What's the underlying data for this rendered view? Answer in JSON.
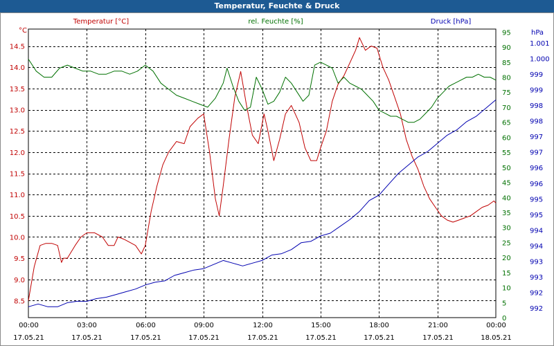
{
  "window": {
    "title": "Temperatur, Feuchte & Druck"
  },
  "colors": {
    "temperature": "#c00000",
    "humidity": "#007000",
    "pressure": "#0000b0",
    "grid": "#000000",
    "title_bar": "#1d5a93"
  },
  "chart_data": {
    "type": "line",
    "title": "Temperatur, Feuchte & Druck",
    "grid": true,
    "x": {
      "ticks": [
        {
          "time": "00:00",
          "date": "17.05.21"
        },
        {
          "time": "03:00",
          "date": "17.05.21"
        },
        {
          "time": "06:00",
          "date": "17.05.21"
        },
        {
          "time": "09:00",
          "date": "17.05.21"
        },
        {
          "time": "12:00",
          "date": "17.05.21"
        },
        {
          "time": "15:00",
          "date": "17.05.21"
        },
        {
          "time": "18:00",
          "date": "17.05.21"
        },
        {
          "time": "21:00",
          "date": "17.05.21"
        },
        {
          "time": "00:00",
          "date": "18.05.21"
        }
      ],
      "range": [
        0,
        24
      ],
      "unit": "hours"
    },
    "axes": {
      "temperature": {
        "label": "Temperatur [°C]",
        "unit_label": "°C",
        "range": [
          8.1,
          14.9
        ],
        "ticks": [
          "14.5",
          "14.0",
          "13.5",
          "13.0",
          "12.5",
          "12.0",
          "11.5",
          "11.0",
          "10.5",
          "10.0",
          "9.5",
          "9.0",
          "8.5"
        ]
      },
      "humidity": {
        "label": "rel. Feuchte [%]",
        "unit_label": "%",
        "range": [
          0,
          96
        ],
        "ticks": [
          "95",
          "90",
          "85",
          "80",
          "75",
          "70",
          "65",
          "60",
          "55",
          "50",
          "45",
          "40",
          "35",
          "30",
          "25",
          "20",
          "15",
          "10",
          "5",
          "0"
        ]
      },
      "pressure": {
        "label": "Druck [hPa]",
        "unit_label": "hPa",
        "range": [
          991.0,
          1001.6
        ],
        "ticks": [
          "1.001",
          "1.000",
          "999",
          "999",
          "998",
          "998",
          "997",
          "997",
          "996",
          "996",
          "995",
          "995",
          "994",
          "994",
          "993",
          "993",
          "992",
          "992"
        ]
      }
    },
    "series": [
      {
        "name": "Temperatur [°C]",
        "axis": "temperature",
        "x": [
          0,
          0.3,
          0.6,
          0.9,
          1.2,
          1.5,
          1.7,
          1.8,
          2.0,
          2.4,
          2.7,
          3.0,
          3.4,
          3.8,
          4.1,
          4.4,
          4.6,
          4.9,
          5.1,
          5.5,
          5.8,
          6.0,
          6.3,
          6.6,
          6.9,
          7.2,
          7.6,
          8.0,
          8.3,
          8.7,
          9.0,
          9.3,
          9.6,
          9.8,
          10.0,
          10.3,
          10.6,
          10.9,
          11.2,
          11.5,
          11.8,
          12.1,
          12.3,
          12.6,
          12.9,
          13.2,
          13.5,
          13.7,
          13.9,
          14.2,
          14.5,
          14.8,
          15.0,
          15.3,
          15.6,
          15.9,
          16.2,
          16.5,
          16.8,
          17.0,
          17.3,
          17.6,
          17.9,
          18.2,
          18.5,
          18.8,
          19.1,
          19.4,
          19.7,
          20.0,
          20.3,
          20.6,
          20.9,
          21.2,
          21.5,
          21.8,
          22.1,
          22.4,
          22.7,
          23.0,
          23.3,
          23.6,
          23.9,
          24.0
        ],
        "y": [
          8.5,
          9.3,
          9.8,
          9.85,
          9.85,
          9.8,
          9.4,
          9.5,
          9.5,
          9.8,
          10.0,
          10.1,
          10.1,
          10.0,
          9.8,
          9.8,
          10.0,
          9.95,
          9.9,
          9.8,
          9.6,
          9.8,
          10.6,
          11.2,
          11.7,
          12.0,
          12.25,
          12.2,
          12.6,
          12.8,
          12.9,
          12.0,
          10.9,
          10.5,
          11.2,
          12.3,
          13.3,
          13.9,
          13.1,
          12.4,
          12.2,
          12.9,
          12.5,
          11.8,
          12.3,
          12.9,
          13.1,
          12.9,
          12.7,
          12.1,
          11.8,
          11.8,
          12.1,
          12.5,
          13.2,
          13.6,
          13.8,
          14.1,
          14.4,
          14.7,
          14.4,
          14.5,
          14.45,
          14.0,
          13.7,
          13.3,
          12.9,
          12.3,
          11.9,
          11.6,
          11.2,
          10.9,
          10.7,
          10.5,
          10.4,
          10.35,
          10.4,
          10.45,
          10.5,
          10.6,
          10.7,
          10.75,
          10.85,
          10.8
        ]
      },
      {
        "name": "rel. Feuchte [%]",
        "axis": "humidity",
        "x": [
          0,
          0.4,
          0.8,
          1.2,
          1.6,
          2.0,
          2.4,
          2.8,
          3.2,
          3.6,
          4.0,
          4.4,
          4.8,
          5.2,
          5.6,
          6.0,
          6.4,
          6.8,
          7.2,
          7.6,
          8.0,
          8.4,
          8.8,
          9.2,
          9.6,
          10.0,
          10.2,
          10.5,
          10.8,
          11.1,
          11.4,
          11.7,
          12.0,
          12.3,
          12.6,
          12.9,
          13.2,
          13.5,
          13.8,
          14.1,
          14.4,
          14.7,
          15.0,
          15.3,
          15.6,
          15.9,
          16.2,
          16.5,
          16.8,
          17.1,
          17.4,
          17.7,
          18.0,
          18.3,
          18.6,
          18.9,
          19.2,
          19.5,
          19.8,
          20.1,
          20.4,
          20.7,
          21.0,
          21.3,
          21.6,
          21.9,
          22.2,
          22.5,
          22.8,
          23.1,
          23.4,
          23.7,
          24.0
        ],
        "y": [
          86,
          82,
          80,
          80,
          83,
          84,
          83,
          82,
          82,
          81,
          81,
          82,
          82,
          81,
          82,
          84,
          82,
          78,
          76,
          74,
          73,
          72,
          71,
          70,
          73,
          78,
          83,
          77,
          72,
          69,
          70,
          80,
          76,
          71,
          72,
          75,
          80,
          78,
          75,
          72,
          74,
          84,
          85,
          84,
          83,
          78,
          80,
          78,
          77,
          76,
          74,
          72,
          69,
          68,
          67,
          67,
          66,
          65,
          65,
          66,
          68,
          70,
          73,
          75,
          77,
          78,
          79,
          80,
          80,
          81,
          80,
          80,
          79
        ]
      },
      {
        "name": "Druck [hPa]",
        "axis": "pressure",
        "x": [
          0,
          0.5,
          1.0,
          1.5,
          2.0,
          2.5,
          3.0,
          3.5,
          4.0,
          4.5,
          5.0,
          5.5,
          6.0,
          6.5,
          7.0,
          7.5,
          8.0,
          8.5,
          9.0,
          9.5,
          10.0,
          10.5,
          11.0,
          11.5,
          12.0,
          12.5,
          13.0,
          13.5,
          14.0,
          14.5,
          15.0,
          15.5,
          16.0,
          16.5,
          17.0,
          17.5,
          18.0,
          18.5,
          19.0,
          19.5,
          20.0,
          20.5,
          21.0,
          21.5,
          22.0,
          22.5,
          23.0,
          23.5,
          24.0
        ],
        "y": [
          991.4,
          991.5,
          991.4,
          991.4,
          991.55,
          991.6,
          991.6,
          991.7,
          991.75,
          991.85,
          991.95,
          992.05,
          992.2,
          992.3,
          992.35,
          992.55,
          992.65,
          992.75,
          992.8,
          992.95,
          993.1,
          993.0,
          992.9,
          993.0,
          993.1,
          993.3,
          993.35,
          993.5,
          993.75,
          993.8,
          994.0,
          994.1,
          994.35,
          994.6,
          994.9,
          995.3,
          995.5,
          995.9,
          996.3,
          996.6,
          996.9,
          997.1,
          997.4,
          997.7,
          997.9,
          998.2,
          998.4,
          998.7,
          999.0
        ]
      }
    ]
  }
}
